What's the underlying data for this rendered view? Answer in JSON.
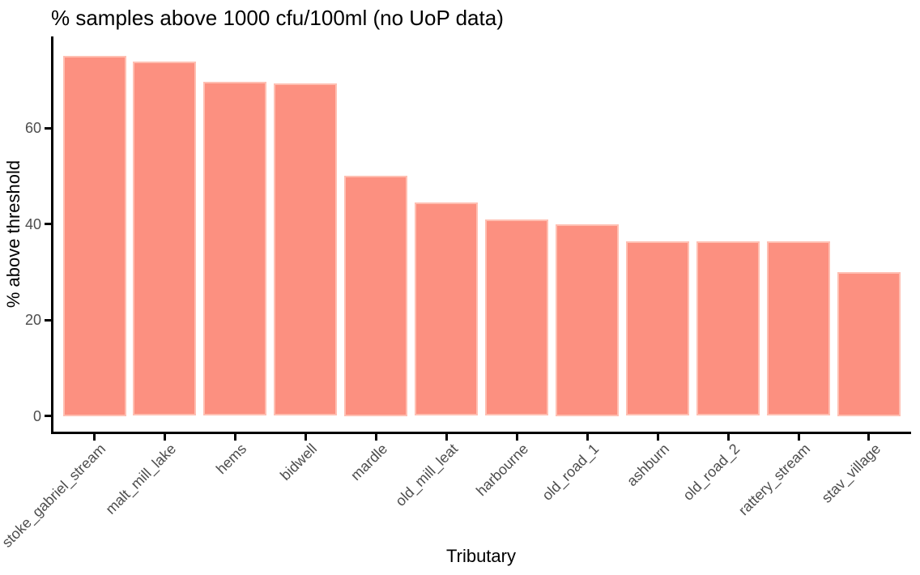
{
  "chart_data": {
    "type": "bar",
    "title": "% samples above 1000 cfu/100ml (no UoP data)",
    "xlabel": "Tributary",
    "ylabel": "% above threshold",
    "categories": [
      "stoke_gabriel_stream",
      "malt_mill_lake",
      "hems",
      "bidwell",
      "mardle",
      "old_mill_leat",
      "harbourne",
      "old_road_1",
      "ashburn",
      "old_road_2",
      "rattery_stream",
      "stav_village"
    ],
    "values": [
      75,
      73.9,
      69.7,
      69.3,
      50,
      44.4,
      40.9,
      40,
      36.3,
      36.3,
      36.3,
      30
    ],
    "yticks": [
      0,
      20,
      40,
      60
    ],
    "ylim": [
      0,
      79
    ],
    "grid": false,
    "legend": null,
    "bar_orientation": "vertical",
    "colors": {
      "bar_fill": "#FC9080",
      "bar_stroke": "#FFBFB2",
      "axis_line": "#000000",
      "tick_text": "#4D4D4D",
      "title_text": "#000000"
    }
  }
}
